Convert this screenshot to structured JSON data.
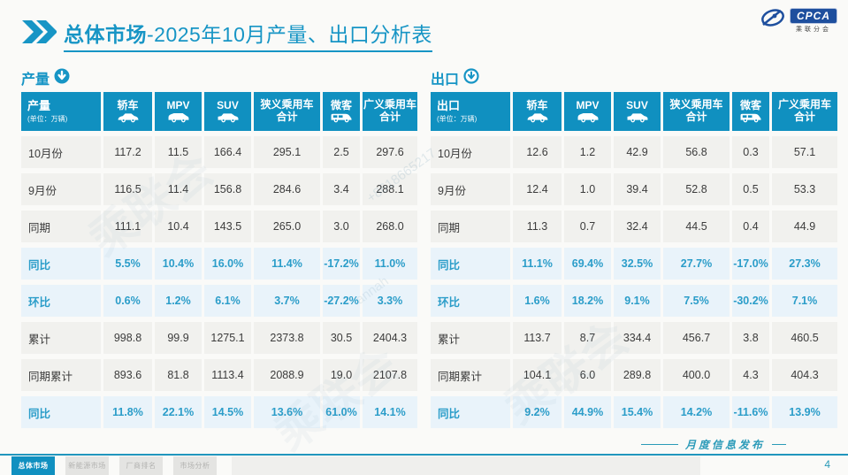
{
  "title": {
    "bold": "总体市场",
    "rest": "-2025年10月产量、出口分析表"
  },
  "logo": {
    "text": "CPCA",
    "subtext": "乘联分会"
  },
  "columns": [
    {
      "key": "sedan",
      "label": "轿车",
      "label2": "",
      "icon": "sedan-icon"
    },
    {
      "key": "mpv",
      "label": "MPV",
      "label2": "",
      "icon": "mpv-icon"
    },
    {
      "key": "suv",
      "label": "SUV",
      "label2": "",
      "icon": "suv-icon"
    },
    {
      "key": "narrow",
      "label": "狭义乘用车",
      "label2": "合计",
      "icon": ""
    },
    {
      "key": "micro",
      "label": "微客",
      "label2": "",
      "icon": "van-icon"
    },
    {
      "key": "broad",
      "label": "广义乘用车",
      "label2": "合计",
      "icon": ""
    }
  ],
  "tables": [
    {
      "key": "production",
      "section_label": "产量",
      "arrow_style": "filled",
      "corner_title": "产量",
      "corner_unit": "(单位：万辆)",
      "rows": [
        {
          "label": "10月份",
          "kind": "data",
          "values": [
            "117.2",
            "11.5",
            "166.4",
            "295.1",
            "2.5",
            "297.6"
          ]
        },
        {
          "label": "9月份",
          "kind": "data",
          "values": [
            "116.5",
            "11.4",
            "156.8",
            "284.6",
            "3.4",
            "288.1"
          ]
        },
        {
          "label": "同期",
          "kind": "data",
          "values": [
            "111.1",
            "10.4",
            "143.5",
            "265.0",
            "3.0",
            "268.0"
          ]
        },
        {
          "label": "同比",
          "kind": "percent",
          "values": [
            "5.5%",
            "10.4%",
            "16.0%",
            "11.4%",
            "-17.2%",
            "11.0%"
          ]
        },
        {
          "label": "环比",
          "kind": "percent",
          "values": [
            "0.6%",
            "1.2%",
            "6.1%",
            "3.7%",
            "-27.2%",
            "3.3%"
          ]
        },
        {
          "label": "累计",
          "kind": "data",
          "values": [
            "998.8",
            "99.9",
            "1275.1",
            "2373.8",
            "30.5",
            "2404.3"
          ]
        },
        {
          "label": "同期累计",
          "kind": "data",
          "values": [
            "893.6",
            "81.8",
            "1113.4",
            "2088.9",
            "19.0",
            "2107.8"
          ]
        },
        {
          "label": "同比",
          "kind": "percent",
          "values": [
            "11.8%",
            "22.1%",
            "14.5%",
            "13.6%",
            "61.0%",
            "14.1%"
          ]
        }
      ]
    },
    {
      "key": "export",
      "section_label": "出口",
      "arrow_style": "outline",
      "corner_title": "出口",
      "corner_unit": "(单位：万辆)",
      "rows": [
        {
          "label": "10月份",
          "kind": "data",
          "values": [
            "12.6",
            "1.2",
            "42.9",
            "56.8",
            "0.3",
            "57.1"
          ]
        },
        {
          "label": "9月份",
          "kind": "data",
          "values": [
            "12.4",
            "1.0",
            "39.4",
            "52.8",
            "0.5",
            "53.3"
          ]
        },
        {
          "label": "同期",
          "kind": "data",
          "values": [
            "11.3",
            "0.7",
            "32.4",
            "44.5",
            "0.4",
            "44.9"
          ]
        },
        {
          "label": "同比",
          "kind": "percent",
          "values": [
            "11.1%",
            "69.4%",
            "32.5%",
            "27.7%",
            "-17.0%",
            "27.3%"
          ]
        },
        {
          "label": "环比",
          "kind": "percent",
          "values": [
            "1.6%",
            "18.2%",
            "9.1%",
            "7.5%",
            "-30.2%",
            "7.1%"
          ]
        },
        {
          "label": "累计",
          "kind": "data",
          "values": [
            "113.7",
            "8.7",
            "334.4",
            "456.7",
            "3.8",
            "460.5"
          ]
        },
        {
          "label": "同期累计",
          "kind": "data",
          "values": [
            "104.1",
            "6.0",
            "289.8",
            "400.0",
            "4.3",
            "404.3"
          ]
        },
        {
          "label": "同比",
          "kind": "percent",
          "values": [
            "9.2%",
            "44.9%",
            "15.4%",
            "14.2%",
            "-11.6%",
            "13.9%"
          ]
        }
      ]
    }
  ],
  "footer": {
    "tabs": [
      {
        "label": "总体市场",
        "active": true
      },
      {
        "label": "新能源市场",
        "active": false
      },
      {
        "label": "厂商排名",
        "active": false
      },
      {
        "label": "市场分析",
        "active": false
      }
    ],
    "publication": "月度信息发布",
    "page_number": "4"
  },
  "watermarks": [
    "+8618665217",
    "annah",
    "乘联会",
    "乘联会",
    "乘联会"
  ],
  "colors": {
    "accent_teal": "#1795c5",
    "table_header_bg": "#1090c0",
    "percent_text": "#2b9dc9",
    "percent_row_bg": "#e9f3fa",
    "data_row_bg": "#f1f1ee",
    "logo_blue": "#1e4f9e"
  }
}
